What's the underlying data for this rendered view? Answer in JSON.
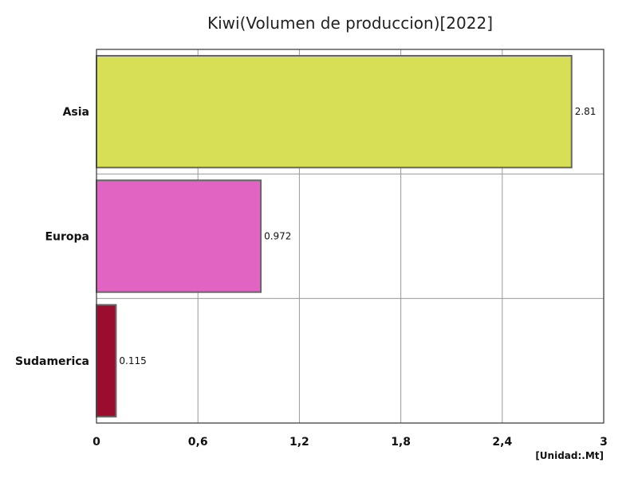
{
  "chart_data": {
    "type": "bar",
    "orientation": "horizontal",
    "title": "Kiwi(Volumen de produccion)[2022]",
    "categories": [
      "Asia",
      "Europa",
      "Sudamerica"
    ],
    "values": [
      2.81,
      0.972,
      0.115
    ],
    "value_labels": [
      "2.81",
      "0.972",
      "0.115"
    ],
    "colors": [
      "#d6df55",
      "#e164c2",
      "#9b0d2e"
    ],
    "xlim": [
      0,
      3
    ],
    "xticks": [
      0,
      0.6,
      1.2,
      1.8,
      2.4,
      3
    ],
    "xtick_labels": [
      "0",
      "0,6",
      "1,2",
      "1,8",
      "2,4",
      "3"
    ],
    "unit": "[Unidad:.Mt]",
    "grid": true,
    "legend": "none"
  }
}
